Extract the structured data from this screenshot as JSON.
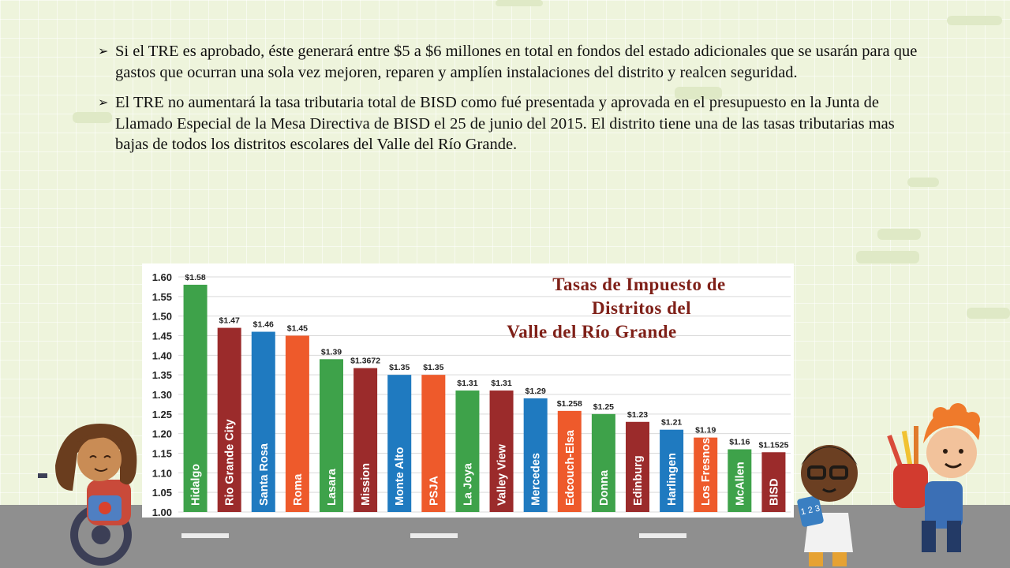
{
  "slide": {
    "bullets": [
      "Si el TRE es aprobado, éste generará entre $5 a $6 millones en total en fondos del estado adicionales que se usarán para que gastos que ocurran una sola vez mejoren, reparen y amplíen instalaciones del distrito y realcen seguridad.",
      "El TRE no aumentará la tasa tributaria total de BISD como fué presentada y aprovada en el presupuesto en la Junta de Llamado Especial de la Mesa Directiva de BISD el 25 de junio del 2015. El distrito tiene una de las tasas tributarias mas bajas de todos los distritos escolares del Valle del Río Grande."
    ],
    "bullet_icon": "arrow-bullet-icon"
  },
  "chart_data": {
    "type": "bar",
    "title_lines": [
      "Tasas de Impuesto de",
      "Distritos del",
      "Valle del Río Grande"
    ],
    "categories": [
      "Hidalgo",
      "Rio Grande City",
      "Santa Rosa",
      "Roma",
      "Lasara",
      "Mission",
      "Monte Alto",
      "PSJA",
      "La Joya",
      "Valley View",
      "Mercedes",
      "Edcouch-Elsa",
      "Donna",
      "Edinburg",
      "Harlingen",
      "Los Fresnos",
      "McAllen",
      "BISD"
    ],
    "values": [
      1.58,
      1.47,
      1.46,
      1.45,
      1.39,
      1.3672,
      1.35,
      1.35,
      1.31,
      1.31,
      1.29,
      1.258,
      1.25,
      1.23,
      1.21,
      1.19,
      1.16,
      1.1525
    ],
    "value_labels": [
      "$1.58",
      "$1.47",
      "$1.46",
      "$1.45",
      "$1.39",
      "$1.3672",
      "$1.35",
      "$1.35",
      "$1.31",
      "$1.31",
      "$1.29",
      "$1.258",
      "$1.25",
      "$1.23",
      "$1.21",
      "$1.19",
      "$1.16",
      "$1.1525"
    ],
    "colors": [
      "#3ea24a",
      "#9b2b2b",
      "#1f7ac0",
      "#ee5a2b",
      "#3ea24a",
      "#9b2b2b",
      "#1f7ac0",
      "#ee5a2b",
      "#3ea24a",
      "#9b2b2b",
      "#1f7ac0",
      "#ee5a2b",
      "#3ea24a",
      "#9b2b2b",
      "#1f7ac0",
      "#ee5a2b",
      "#3ea24a",
      "#9b2b2b"
    ],
    "ylim": [
      1.0,
      1.6
    ],
    "yticks": [
      "1.00",
      "1.05",
      "1.10",
      "1.15",
      "1.20",
      "1.25",
      "1.30",
      "1.35",
      "1.40",
      "1.45",
      "1.50",
      "1.55",
      "1.60"
    ],
    "grid": true
  }
}
